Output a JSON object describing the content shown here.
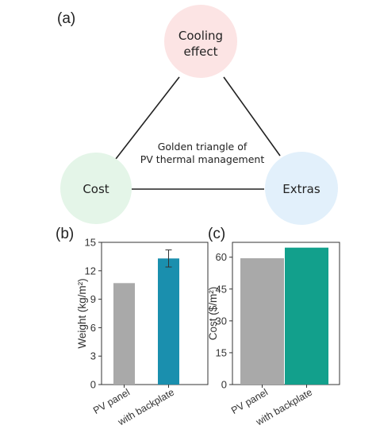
{
  "panel_a": {
    "label": "(a)",
    "nodes": [
      {
        "lines": [
          "Cooling",
          "effect"
        ],
        "color": "#fce4e4"
      },
      {
        "lines": [
          "Cost"
        ],
        "color": "#e4f5e8"
      },
      {
        "lines": [
          "Extras"
        ],
        "color": "#e2f0fb"
      }
    ],
    "center_text": [
      "Golden triangle of",
      "PV thermal management"
    ]
  },
  "chart_data": [
    {
      "panel_label": "(b)",
      "type": "bar",
      "categories": [
        "PV panel",
        "with backplate"
      ],
      "values": [
        10.7,
        13.3
      ],
      "error": [
        0,
        0.9
      ],
      "colors": [
        "#a9a9a9",
        "#1a8fae"
      ],
      "ylabel": "Weight (kg/m²)",
      "ylim": [
        0,
        15
      ],
      "yticks": [
        0,
        3,
        6,
        9,
        12,
        15
      ],
      "title": "",
      "xlabel": ""
    },
    {
      "panel_label": "(c)",
      "type": "bar",
      "categories": [
        "PV panel",
        "with backplate"
      ],
      "values": [
        59.5,
        64.5
      ],
      "error": [
        0,
        0
      ],
      "colors": [
        "#a9a9a9",
        "#12a08c"
      ],
      "ylabel": "Cost ($/m²)",
      "ylim": [
        0,
        67
      ],
      "yticks": [
        0,
        15,
        30,
        45,
        60
      ],
      "title": "",
      "xlabel": ""
    }
  ]
}
